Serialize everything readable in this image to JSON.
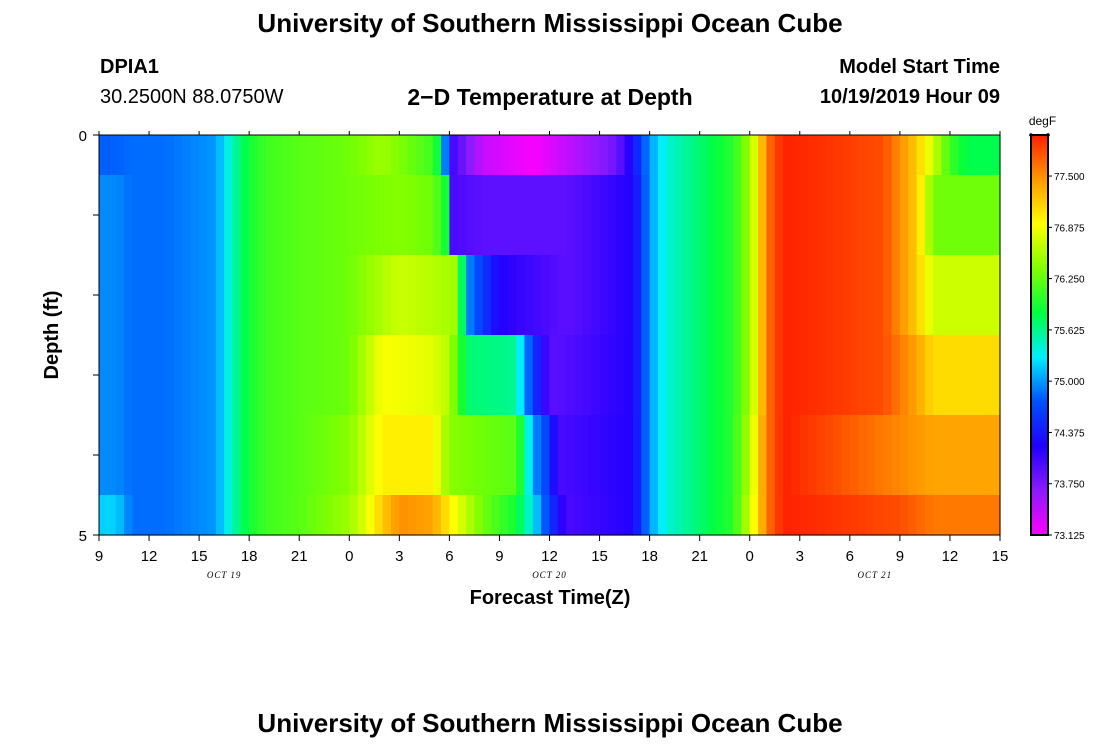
{
  "header": {
    "title": "University of Southern Mississippi Ocean Cube",
    "station_id": "DPIA1",
    "coordinates": "30.2500N 88.0750W",
    "plot_title": "2−D Temperature at Depth",
    "model_start_label": "Model Start Time",
    "model_start_value": "10/19/2019 Hour 09"
  },
  "footer": {
    "title": "University of Southern Mississippi Ocean Cube"
  },
  "chart_data": {
    "type": "heatmap",
    "title": "2−D Temperature at Depth",
    "xlabel": "Forecast Time(Z)",
    "ylabel": "Depth (ft)",
    "ylim": [
      0,
      5
    ],
    "y_ticks": [
      "0",
      "5"
    ],
    "x_tick_labels": [
      "9",
      "12",
      "15",
      "18",
      "21",
      "0",
      "3",
      "6",
      "9",
      "12",
      "15",
      "18",
      "21",
      "0",
      "3",
      "6",
      "9",
      "12",
      "15"
    ],
    "date_labels": [
      "OCT 19",
      "OCT 20",
      "OCT 21"
    ],
    "x_range_hours": [
      0,
      54
    ],
    "colorbar": {
      "unit": "degF",
      "tick_labels": [
        "77.500",
        "76.875",
        "76.250",
        "75.625",
        "75.000",
        "74.375",
        "73.750",
        "73.125"
      ],
      "range": [
        73.125,
        78.0
      ],
      "colors": [
        "#ff00ff",
        "#8c1aff",
        "#2000ff",
        "#0050ff",
        "#00eeff",
        "#00ff40",
        "#80ff00",
        "#ffff00",
        "#ff9900",
        "#ff2000"
      ]
    },
    "depth_rows": [
      "0.0-0.5",
      "0.5-1.5",
      "1.5-2.5",
      "2.5-3.5",
      "3.5-4.5",
      "4.5-5.0"
    ],
    "segments": [
      [
        [
          0,
          74.8
        ],
        [
          1,
          74.8
        ],
        [
          2,
          74.85
        ],
        [
          4,
          74.85
        ],
        [
          7,
          75.0
        ],
        [
          8,
          75.5
        ],
        [
          9,
          75.9
        ],
        [
          10,
          76.1
        ],
        [
          12,
          76.2
        ],
        [
          15,
          76.3
        ],
        [
          17,
          76.5
        ],
        [
          20,
          76.1
        ],
        [
          20.5,
          75.7
        ],
        [
          21,
          74.1
        ],
        [
          23,
          73.4
        ],
        [
          26,
          73.15
        ],
        [
          31,
          73.8
        ],
        [
          32,
          74.3
        ],
        [
          33,
          75.0
        ],
        [
          34,
          75.4
        ],
        [
          36,
          75.7
        ],
        [
          38,
          76.0
        ],
        [
          39,
          76.5
        ],
        [
          39.5,
          77.0
        ],
        [
          40,
          77.6
        ],
        [
          41,
          78.0
        ],
        [
          47,
          77.8
        ],
        [
          49,
          77.2
        ],
        [
          50,
          76.7
        ],
        [
          51,
          76.1
        ],
        [
          52,
          75.8
        ],
        [
          54,
          75.8
        ]
      ],
      [
        [
          0,
          74.95
        ],
        [
          1,
          74.95
        ],
        [
          2,
          74.85
        ],
        [
          4,
          74.85
        ],
        [
          7,
          75.0
        ],
        [
          8,
          75.5
        ],
        [
          9,
          75.9
        ],
        [
          10,
          76.1
        ],
        [
          12,
          76.2
        ],
        [
          15,
          76.3
        ],
        [
          18,
          76.4
        ],
        [
          20,
          76.3
        ],
        [
          21,
          75.8
        ],
        [
          21.2,
          74.0
        ],
        [
          23,
          73.9
        ],
        [
          28,
          73.9
        ],
        [
          32,
          74.2
        ],
        [
          33,
          75.0
        ],
        [
          34,
          75.4
        ],
        [
          36,
          75.7
        ],
        [
          38,
          76.0
        ],
        [
          39,
          76.5
        ],
        [
          39.5,
          77.0
        ],
        [
          40,
          77.6
        ],
        [
          41,
          78.0
        ],
        [
          47,
          77.8
        ],
        [
          49,
          77.2
        ],
        [
          49.5,
          76.8
        ],
        [
          50,
          76.3
        ],
        [
          54,
          76.3
        ]
      ],
      [
        [
          0,
          74.95
        ],
        [
          1,
          74.95
        ],
        [
          2,
          74.85
        ],
        [
          4,
          74.85
        ],
        [
          7,
          75.0
        ],
        [
          8,
          75.5
        ],
        [
          9,
          75.9
        ],
        [
          10,
          76.1
        ],
        [
          12,
          76.2
        ],
        [
          15,
          76.3
        ],
        [
          18,
          76.7
        ],
        [
          20,
          76.6
        ],
        [
          21.5,
          76.5
        ],
        [
          22,
          75.0
        ],
        [
          24,
          74.2
        ],
        [
          28,
          73.9
        ],
        [
          32,
          74.2
        ],
        [
          33,
          75.0
        ],
        [
          34,
          75.4
        ],
        [
          36,
          75.7
        ],
        [
          38,
          76.0
        ],
        [
          39,
          76.5
        ],
        [
          39.5,
          77.0
        ],
        [
          40,
          77.6
        ],
        [
          41,
          78.0
        ],
        [
          47,
          77.8
        ],
        [
          49,
          77.2
        ],
        [
          50,
          76.7
        ],
        [
          54,
          76.7
        ]
      ],
      [
        [
          0,
          74.95
        ],
        [
          1,
          74.95
        ],
        [
          2,
          74.85
        ],
        [
          4,
          74.85
        ],
        [
          7,
          75.0
        ],
        [
          8,
          75.5
        ],
        [
          9,
          75.9
        ],
        [
          10,
          76.1
        ],
        [
          12,
          76.2
        ],
        [
          15,
          76.3
        ],
        [
          17,
          76.9
        ],
        [
          20,
          76.8
        ],
        [
          21,
          76.6
        ],
        [
          22,
          75.7
        ],
        [
          25,
          75.6
        ],
        [
          25.5,
          75.0
        ],
        [
          27,
          73.9
        ],
        [
          32,
          74.2
        ],
        [
          33,
          75.0
        ],
        [
          34,
          75.4
        ],
        [
          36,
          75.7
        ],
        [
          38,
          76.0
        ],
        [
          39,
          76.5
        ],
        [
          39.5,
          77.0
        ],
        [
          40,
          77.6
        ],
        [
          41,
          78.0
        ],
        [
          47,
          77.8
        ],
        [
          49,
          77.4
        ],
        [
          50,
          77.1
        ],
        [
          54,
          77.1
        ]
      ],
      [
        [
          0,
          74.95
        ],
        [
          1,
          74.95
        ],
        [
          2,
          74.85
        ],
        [
          4,
          74.85
        ],
        [
          7,
          75.0
        ],
        [
          8,
          75.5
        ],
        [
          9,
          75.9
        ],
        [
          10,
          76.1
        ],
        [
          12,
          76.2
        ],
        [
          15,
          76.4
        ],
        [
          17,
          77.0
        ],
        [
          20,
          77.0
        ],
        [
          21,
          76.4
        ],
        [
          25,
          76.2
        ],
        [
          25.5,
          75.7
        ],
        [
          26,
          75.0
        ],
        [
          27,
          74.6
        ],
        [
          27.5,
          74.0
        ],
        [
          32,
          74.2
        ],
        [
          33,
          75.0
        ],
        [
          34,
          75.4
        ],
        [
          36,
          75.7
        ],
        [
          38,
          76.0
        ],
        [
          39,
          76.6
        ],
        [
          39.5,
          77.1
        ],
        [
          40,
          77.6
        ],
        [
          41,
          78.0
        ],
        [
          47,
          77.6
        ],
        [
          50,
          77.4
        ],
        [
          54,
          77.4
        ]
      ],
      [
        [
          0,
          75.2
        ],
        [
          1,
          75.2
        ],
        [
          2,
          74.85
        ],
        [
          4,
          74.85
        ],
        [
          7,
          75.0
        ],
        [
          8,
          75.5
        ],
        [
          9,
          75.9
        ],
        [
          10,
          76.1
        ],
        [
          12,
          76.2
        ],
        [
          15,
          76.5
        ],
        [
          16,
          76.8
        ],
        [
          17,
          77.2
        ],
        [
          18,
          77.5
        ],
        [
          20,
          77.4
        ],
        [
          21,
          77.0
        ],
        [
          23,
          76.3
        ],
        [
          25,
          75.9
        ],
        [
          26,
          75.3
        ],
        [
          27,
          74.6
        ],
        [
          28,
          74.0
        ],
        [
          32,
          74.2
        ],
        [
          33,
          75.0
        ],
        [
          34,
          75.4
        ],
        [
          36,
          75.7
        ],
        [
          38,
          76.0
        ],
        [
          39,
          76.7
        ],
        [
          39.5,
          77.1
        ],
        [
          40,
          77.6
        ],
        [
          41,
          78.0
        ],
        [
          48,
          77.8
        ],
        [
          50,
          77.6
        ],
        [
          54,
          77.6
        ]
      ]
    ],
    "grid": false
  }
}
